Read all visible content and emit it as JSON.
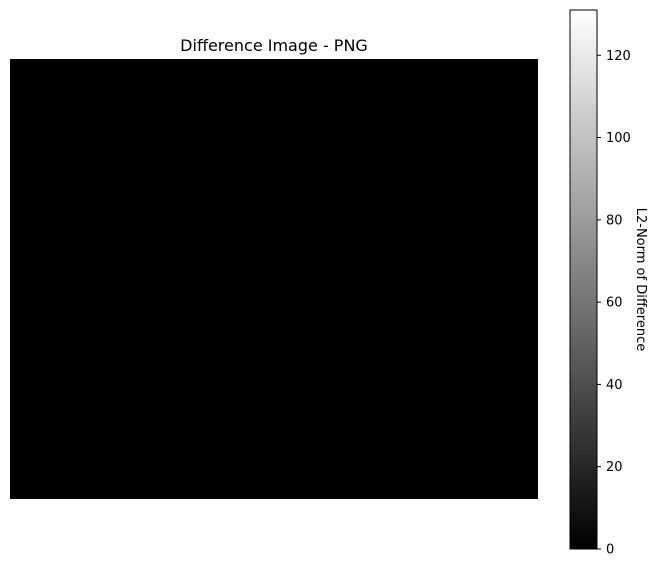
{
  "chart_data": {
    "type": "heatmap",
    "title": "Difference Image - PNG",
    "xlabel": "",
    "ylabel": "",
    "grid": false,
    "image": {
      "uniform_value": 0,
      "color": "#000000"
    },
    "colorbar": {
      "label": "L2-Norm of Difference",
      "colormap": "gray",
      "range": [
        0,
        131
      ],
      "ticks": [
        0,
        20,
        40,
        60,
        80,
        100,
        120
      ],
      "tick_labels": [
        "0",
        "20",
        "40",
        "60",
        "80",
        "100",
        "120"
      ],
      "low_color": "#000000",
      "high_color": "#ffffff"
    }
  }
}
